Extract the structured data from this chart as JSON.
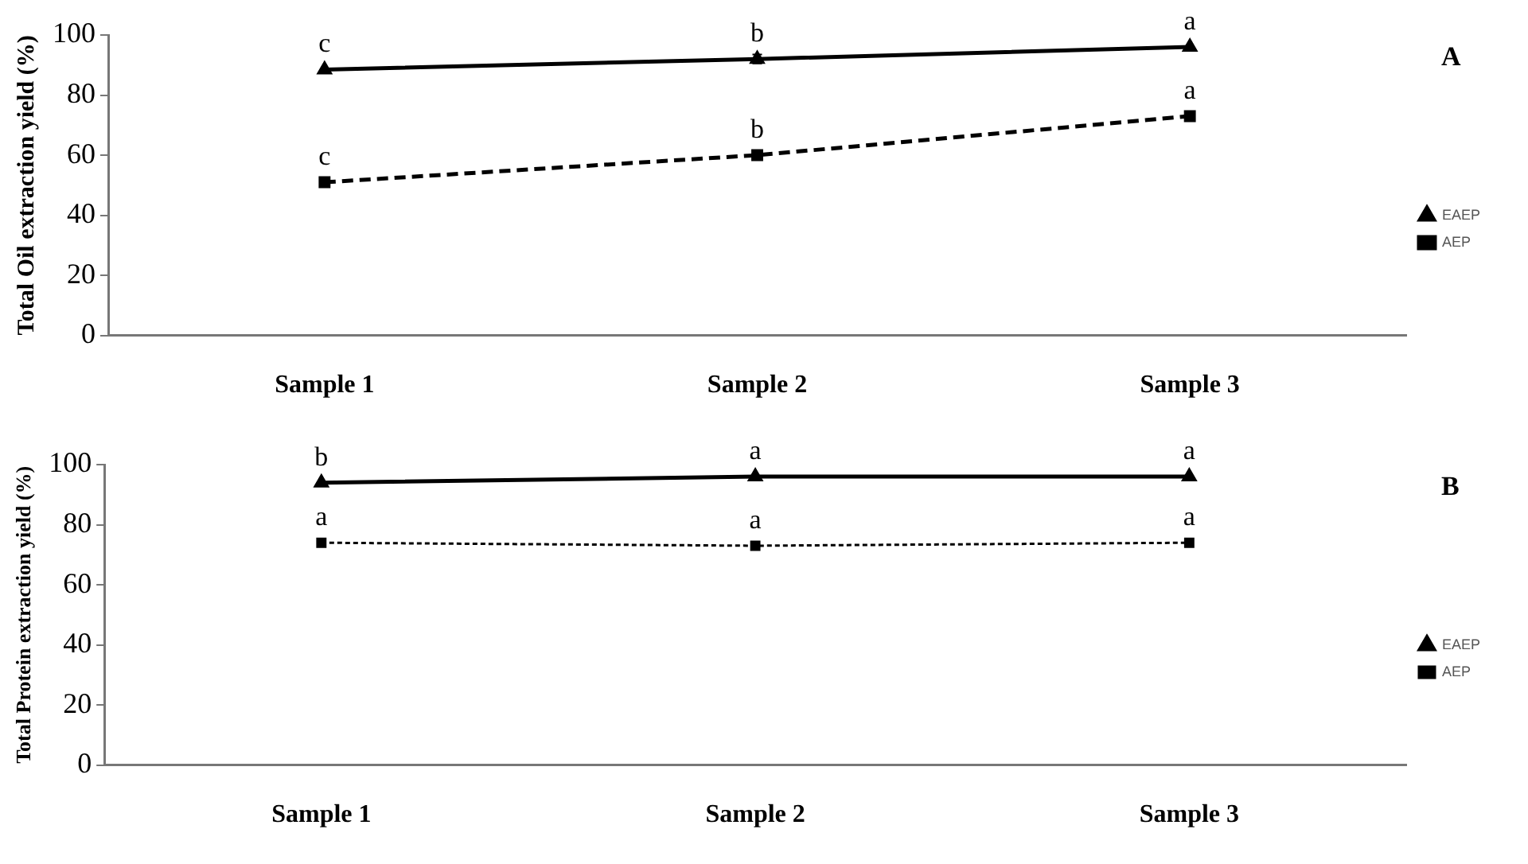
{
  "chart_data": [
    {
      "type": "line",
      "ylabel": "Total Oil extraction yield (%)",
      "categories": [
        "Sample 1",
        "Sample 2",
        "Sample 3"
      ],
      "series": [
        {
          "name": "EAEP",
          "color": "#000000",
          "values": [
            88.5,
            92,
            96
          ],
          "errors": [
            null,
            1.5,
            null
          ],
          "marker": "triangle",
          "line_style": "solid"
        },
        {
          "name": "AEP",
          "color": "#000000",
          "values": [
            51,
            60,
            73
          ],
          "marker": "square",
          "line_style": "dashed"
        }
      ],
      "ylim": [
        0,
        100
      ],
      "yticks": [
        0,
        20,
        40,
        60,
        80,
        100
      ],
      "grid": false,
      "legend": "right",
      "annotations": [
        {
          "text": "c",
          "x": "Sample 1",
          "y": 88.5
        },
        {
          "text": "b",
          "x": "Sample 2",
          "y": 92
        },
        {
          "text": "a",
          "x": "Sample 3",
          "y": 96
        },
        {
          "text": "c",
          "x": "Sample 1",
          "y": 51
        },
        {
          "text": "b",
          "x": "Sample 2",
          "y": 60
        },
        {
          "text": "a",
          "x": "Sample 3",
          "y": 73
        },
        "A"
      ]
    },
    {
      "type": "line",
      "ylabel": "Total Protein extraction yield (%)",
      "categories": [
        "Sample 1",
        "Sample 2",
        "Sample 3"
      ],
      "series": [
        {
          "name": "EAEP",
          "color": "#000000",
          "values": [
            94,
            96,
            96
          ],
          "marker": "triangle",
          "line_style": "solid"
        },
        {
          "name": "AEP",
          "color": "#000000",
          "values": [
            74,
            73,
            74
          ],
          "marker": "square",
          "line_style": "dotted"
        }
      ],
      "ylim": [
        0,
        100
      ],
      "yticks": [
        0,
        20,
        40,
        60,
        80,
        100
      ],
      "grid": false,
      "legend": "right",
      "annotations": [
        {
          "text": "b",
          "x": "Sample 1",
          "y": 94
        },
        {
          "text": "a",
          "x": "Sample 2",
          "y": 96
        },
        {
          "text": "a",
          "x": "Sample 3",
          "y": 96
        },
        {
          "text": "a",
          "x": "Sample 1",
          "y": 74
        },
        {
          "text": "a",
          "x": "Sample 2",
          "y": 73
        },
        {
          "text": "a",
          "x": "Sample 3",
          "y": 74
        },
        "B"
      ]
    }
  ]
}
